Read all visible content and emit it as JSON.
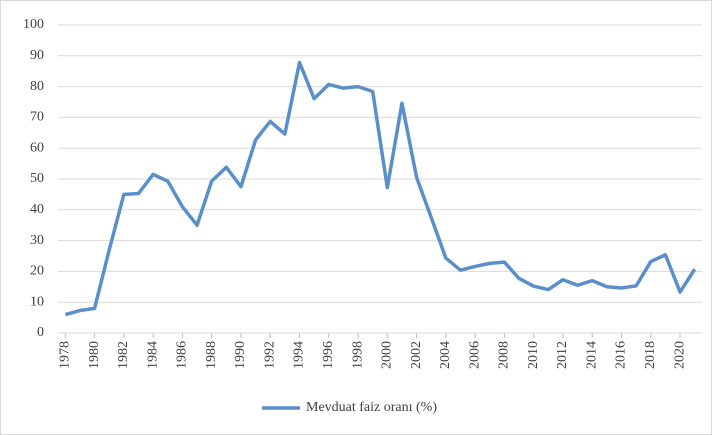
{
  "chart_data": {
    "type": "line",
    "x": [
      1978,
      1979,
      1980,
      1981,
      1982,
      1983,
      1984,
      1985,
      1986,
      1987,
      1988,
      1989,
      1990,
      1991,
      1992,
      1993,
      1994,
      1995,
      1996,
      1997,
      1998,
      1999,
      2000,
      2001,
      2002,
      2003,
      2004,
      2005,
      2006,
      2007,
      2008,
      2009,
      2010,
      2011,
      2012,
      2013,
      2014,
      2015,
      2016,
      2017,
      2018,
      2019,
      2020,
      2021
    ],
    "series": [
      {
        "name": "Mevduat faiz oranı (%)",
        "color": "#5b8fca",
        "values": [
          6,
          7.3,
          8,
          27,
          45,
          45.3,
          51.5,
          49.3,
          41,
          35,
          49.3,
          53.8,
          47.5,
          62.7,
          68.7,
          64.6,
          87.8,
          76.1,
          80.7,
          79.5,
          80,
          78.4,
          47.2,
          74.6,
          50.5,
          37.5,
          24.3,
          20.4,
          21.6,
          22.6,
          23,
          17.7,
          15.2,
          14.1,
          17.3,
          15.5,
          17,
          15,
          14.6,
          15.3,
          23.2,
          25.4,
          13.3,
          20.7
        ]
      }
    ],
    "xlim": [
      1977.5,
      2021.5
    ],
    "xticks": [
      1978,
      1980,
      1982,
      1984,
      1986,
      1988,
      1990,
      1992,
      1994,
      1996,
      1998,
      2000,
      2002,
      2004,
      2006,
      2008,
      2010,
      2012,
      2014,
      2016,
      2018,
      2020
    ],
    "ylim": [
      0,
      100
    ],
    "yticks": [
      0,
      10,
      20,
      30,
      40,
      50,
      60,
      70,
      80,
      90,
      100
    ],
    "grid": true,
    "legend": "bottom"
  }
}
